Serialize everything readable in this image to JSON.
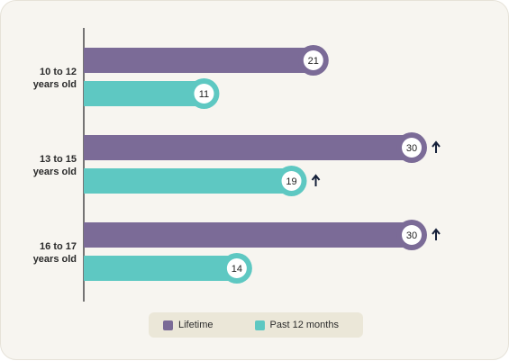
{
  "chart_data": {
    "type": "bar",
    "orientation": "horizontal",
    "categories": [
      "10 to 12\nyears old",
      "13 to 15\nyears old",
      "16 to 17\nyears old"
    ],
    "series": [
      {
        "name": "Lifetime",
        "values": [
          21,
          30,
          30
        ],
        "color": "#7b6b97"
      },
      {
        "name": "Past 12 months",
        "values": [
          11,
          19,
          14
        ],
        "color": "#5ec8c2"
      }
    ],
    "increase_markers": [
      [
        false,
        true,
        true
      ],
      [
        false,
        true,
        false
      ]
    ],
    "increase_icon": "up-arrow-icon",
    "xlim": [
      0,
      30
    ],
    "grid": false,
    "legend_position": "bottom-center"
  }
}
